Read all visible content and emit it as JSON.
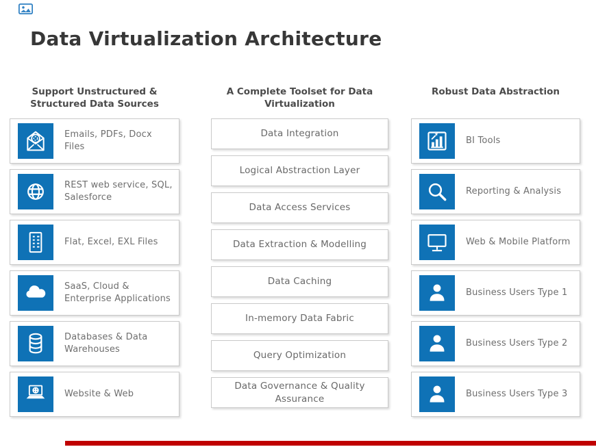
{
  "title": "Data Virtualization Architecture",
  "colors": {
    "icon_blue": "#0F72B6",
    "footer_red": "#C00000"
  },
  "watermark": {
    "icon": "image-logo-icon"
  },
  "columns": [
    {
      "header": "Support Unstructured & Structured Data Sources",
      "items": [
        {
          "icon": "envelope-seal-icon",
          "label": "Emails, PDFs, Docx Files"
        },
        {
          "icon": "globe-icon",
          "label": "REST web service, SQL, Salesforce"
        },
        {
          "icon": "spreadsheet-icon",
          "label": "Flat, Excel, EXL Files"
        },
        {
          "icon": "cloud-icon",
          "label": "SaaS, Cloud & Enterprise Applications"
        },
        {
          "icon": "database-icon",
          "label": "Databases & Data Warehouses"
        },
        {
          "icon": "laptop-web-icon",
          "label": "Website & Web"
        }
      ]
    },
    {
      "header": "A Complete Toolset for Data Virtualization",
      "items": [
        {
          "label": "Data Integration"
        },
        {
          "label": "Logical Abstraction Layer"
        },
        {
          "label": "Data Access Services"
        },
        {
          "label": "Data Extraction & Modelling"
        },
        {
          "label": "Data Caching"
        },
        {
          "label": "In-memory Data Fabric"
        },
        {
          "label": "Query Optimization"
        },
        {
          "label": "Data Governance & Quality Assurance"
        }
      ]
    },
    {
      "header": "Robust Data Abstraction",
      "items": [
        {
          "icon": "bar-chart-icon",
          "label": "BI Tools"
        },
        {
          "icon": "search-icon",
          "label": "Reporting & Analysis"
        },
        {
          "icon": "monitor-icon",
          "label": "Web & Mobile Platform"
        },
        {
          "icon": "user-icon",
          "label": "Business Users Type 1"
        },
        {
          "icon": "user-icon",
          "label": "Business Users Type 2"
        },
        {
          "icon": "user-icon",
          "label": "Business Users Type 3"
        }
      ]
    }
  ]
}
